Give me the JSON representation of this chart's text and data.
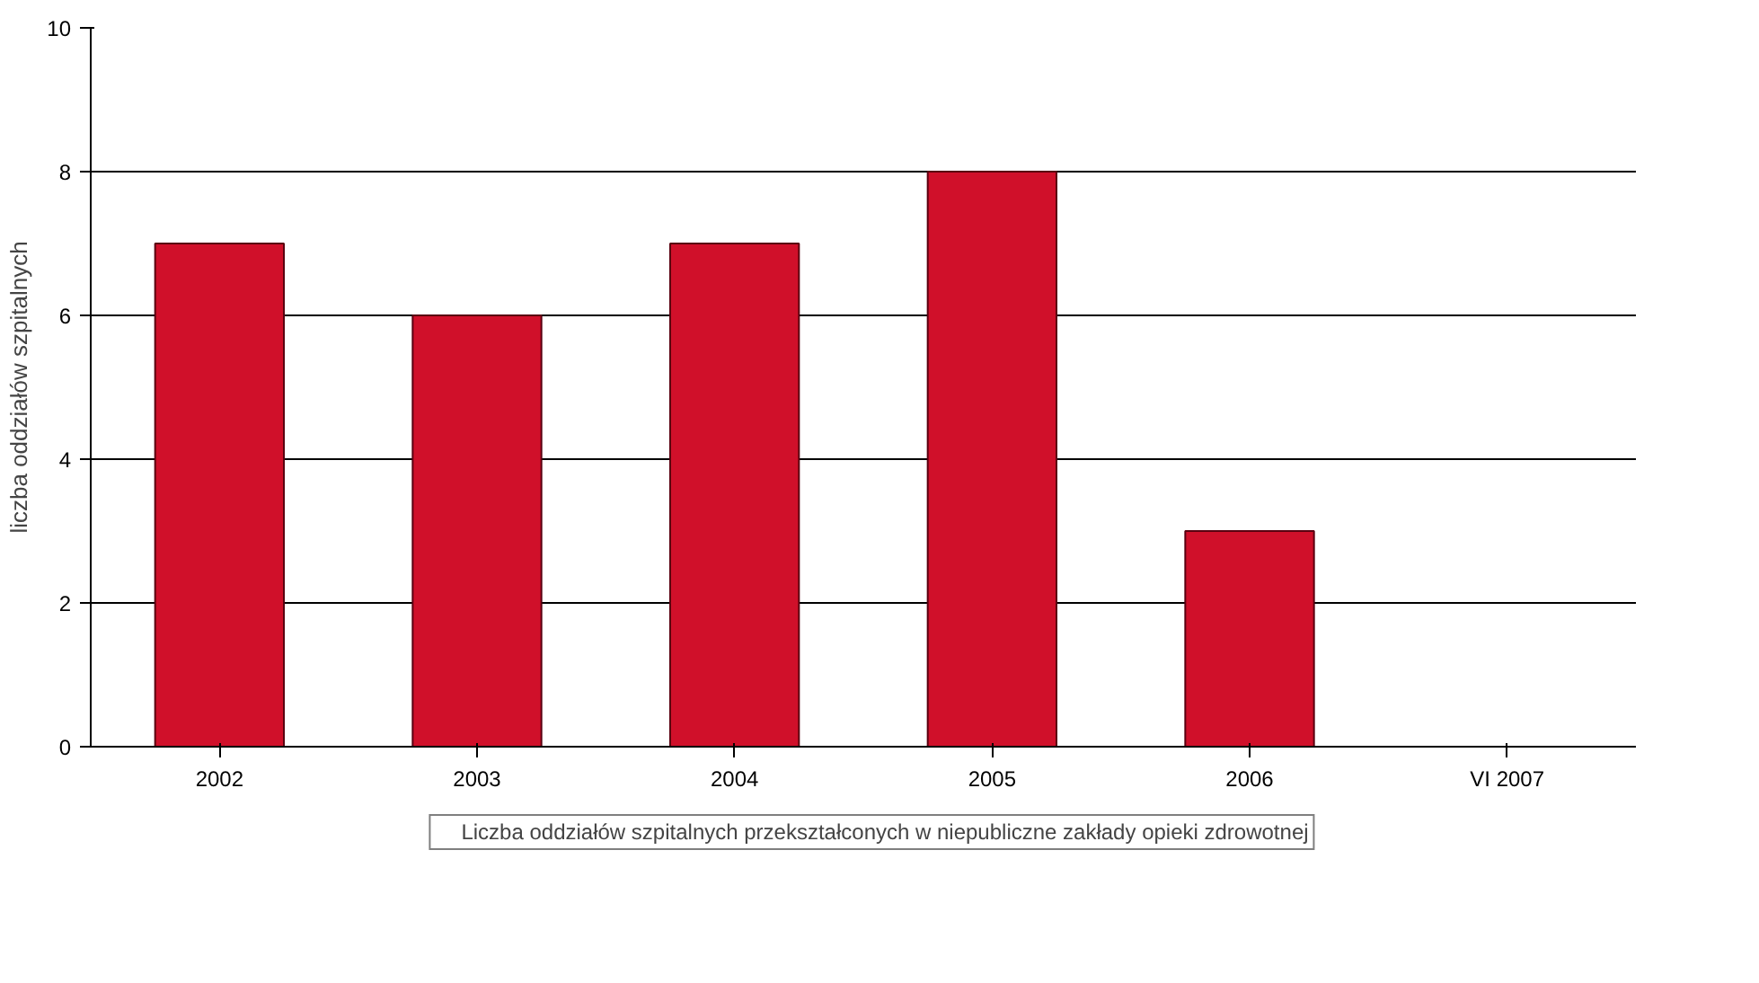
{
  "chart_data": {
    "type": "bar",
    "ylabel": "liczba oddziałów szpitalnych",
    "categories": [
      "2002",
      "2003",
      "2004",
      "2005",
      "2006",
      "VI 2007"
    ],
    "series": [
      {
        "name": "Liczba oddziałów szpitalnych przekształconych w niepubliczne zakłady opieki zdrowotnej",
        "color": "#d0102a",
        "values": [
          7,
          6,
          7,
          8,
          3,
          null
        ]
      }
    ],
    "ylim": [
      0,
      10
    ],
    "yticks": [
      0,
      2,
      4,
      6,
      8,
      10
    ],
    "grid": "y",
    "legend": "bottom"
  }
}
